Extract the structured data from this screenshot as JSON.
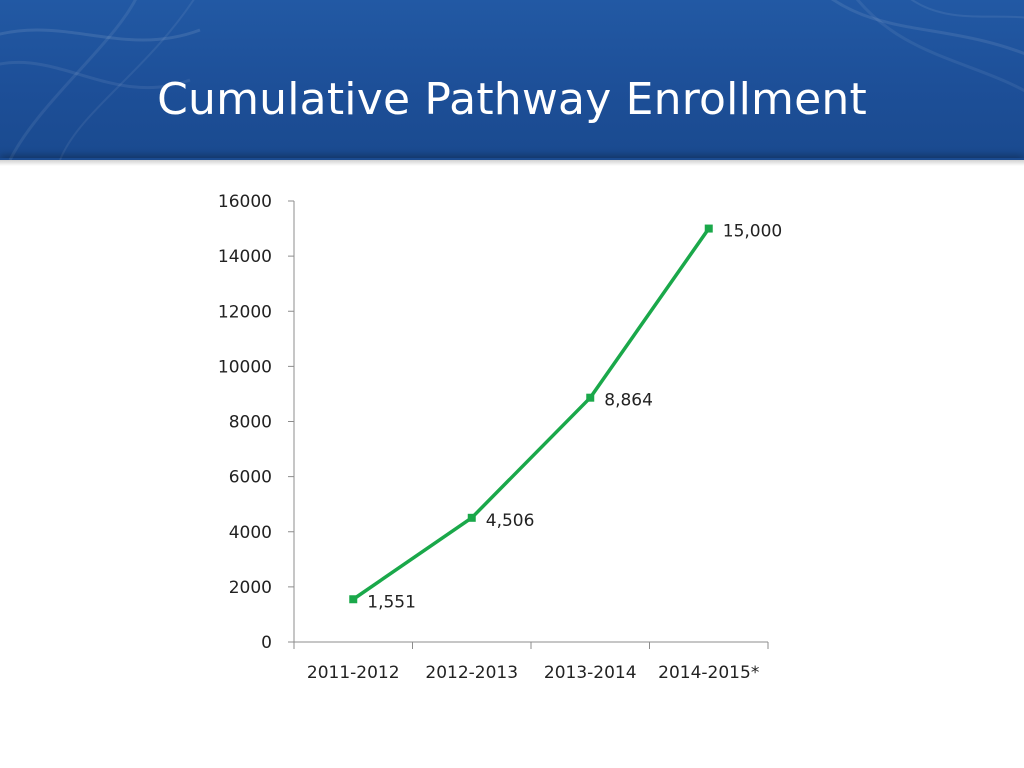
{
  "slide": {
    "title": "Cumulative Pathway Enrollment",
    "header_color": "#1d4f98"
  },
  "chart_data": {
    "type": "line",
    "title": "",
    "xlabel": "",
    "ylabel": "",
    "categories": [
      "2011-2012",
      "2012-2013",
      "2013-2014",
      "2014-2015*"
    ],
    "series": [
      {
        "values": [
          1551,
          4506,
          8864,
          15000
        ],
        "data_labels": [
          "1,551",
          "4,506",
          "8,864",
          "15,000"
        ],
        "color": "#1aa84a",
        "marker": "square"
      }
    ],
    "ylim": [
      0,
      16000
    ],
    "yticks": [
      "0",
      "2000",
      "4000",
      "6000",
      "8000",
      "10000",
      "12000",
      "14000",
      "16000"
    ],
    "grid": false,
    "legend": "none"
  }
}
